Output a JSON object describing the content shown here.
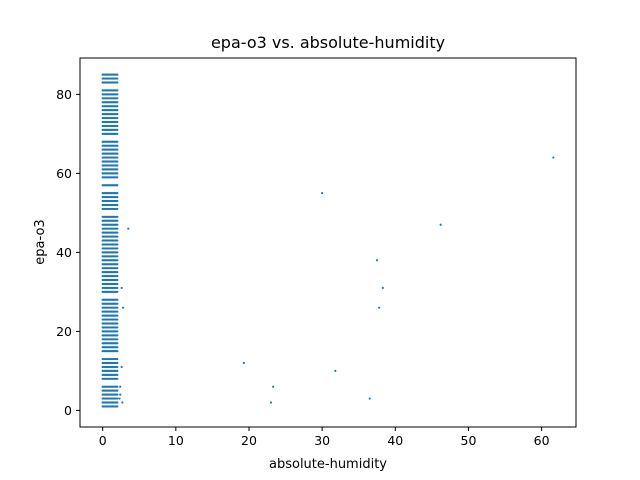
{
  "chart_data": {
    "type": "scatter",
    "title": "epa-o3 vs. absolute-humidity",
    "xlabel": "absolute-humidity",
    "ylabel": "epa-o3",
    "xlim": [
      -3.1,
      64.7
    ],
    "ylim": [
      -4.2,
      89.2
    ],
    "xticks": [
      0,
      10,
      20,
      30,
      40,
      50,
      60
    ],
    "yticks": [
      0,
      20,
      40,
      60,
      80
    ],
    "grid": false,
    "marker_color": "#1f77b4",
    "dense_cluster": {
      "description": "integer epa-o3 values stacked at low absolute-humidity",
      "x_min": 0.0,
      "x_max": 2.0,
      "y_values": [
        1,
        2,
        3,
        4,
        5,
        6,
        8,
        9,
        10,
        11,
        12,
        13,
        15,
        16,
        17,
        18,
        19,
        20,
        21,
        22,
        23,
        24,
        25,
        26,
        27,
        28,
        30,
        31,
        32,
        33,
        34,
        35,
        36,
        37,
        38,
        39,
        40,
        41,
        42,
        43,
        44,
        45,
        46,
        47,
        48,
        49,
        51,
        52,
        53,
        54,
        55,
        57,
        59,
        60,
        61,
        62,
        63,
        64,
        65,
        66,
        67,
        68,
        70,
        71,
        72,
        73,
        74,
        75,
        76,
        77,
        78,
        79,
        80,
        81,
        83,
        84,
        85
      ]
    },
    "points": [
      {
        "x": 3.5,
        "y": 46
      },
      {
        "x": 2.6,
        "y": 31
      },
      {
        "x": 2.8,
        "y": 26
      },
      {
        "x": 2.6,
        "y": 11
      },
      {
        "x": 2.4,
        "y": 6
      },
      {
        "x": 2.4,
        "y": 4
      },
      {
        "x": 2.7,
        "y": 2
      },
      {
        "x": 2.3,
        "y": 3
      },
      {
        "x": 19.3,
        "y": 12
      },
      {
        "x": 23.3,
        "y": 6
      },
      {
        "x": 23.0,
        "y": 2
      },
      {
        "x": 30.0,
        "y": 55
      },
      {
        "x": 31.8,
        "y": 10
      },
      {
        "x": 36.5,
        "y": 3
      },
      {
        "x": 37.5,
        "y": 38
      },
      {
        "x": 37.8,
        "y": 26
      },
      {
        "x": 38.3,
        "y": 31
      },
      {
        "x": 46.2,
        "y": 47
      },
      {
        "x": 61.6,
        "y": 64
      }
    ]
  }
}
